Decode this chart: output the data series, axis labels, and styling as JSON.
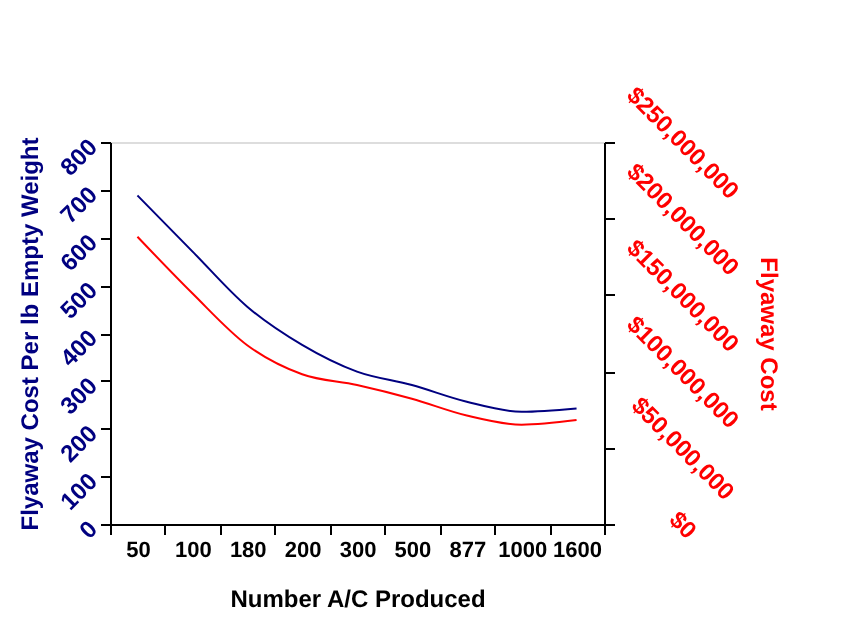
{
  "chart_data": {
    "type": "line",
    "xlabel": "Number A/C Produced",
    "ylabel": "Flyaway Cost Per lb Empty Weight",
    "y2label": "Flyaway Cost",
    "categories": [
      "50",
      "100",
      "180",
      "200",
      "300",
      "500",
      "877",
      "1000",
      "1600"
    ],
    "series": [
      {
        "color": "#000080",
        "values": [
          688,
          571,
          455,
          375,
          319,
          291,
          256,
          235,
          242
        ]
      },
      {
        "color": "#ff0000",
        "axis": "y2",
        "values": [
          188000000,
          151000000,
          117000000,
          98000000,
          91000000,
          82000000,
          71000000,
          65000000,
          68000000
        ]
      }
    ],
    "ylim": [
      0,
      800
    ],
    "yticks": [
      0,
      100,
      200,
      300,
      400,
      500,
      600,
      700,
      800
    ],
    "y2lim": [
      0,
      250000000
    ],
    "y2ticks": [
      {
        "value": 0,
        "label": "$0"
      },
      {
        "value": 50000000,
        "label": "$50,000,000"
      },
      {
        "value": 100000000,
        "label": "$100,000,000"
      },
      {
        "value": 150000000,
        "label": "$150,000,000"
      },
      {
        "value": 200000000,
        "label": "$200,000,000"
      },
      {
        "value": 250000000,
        "label": "$250,000,000"
      }
    ],
    "grid": false,
    "marker": "none",
    "line_style": "solid"
  }
}
